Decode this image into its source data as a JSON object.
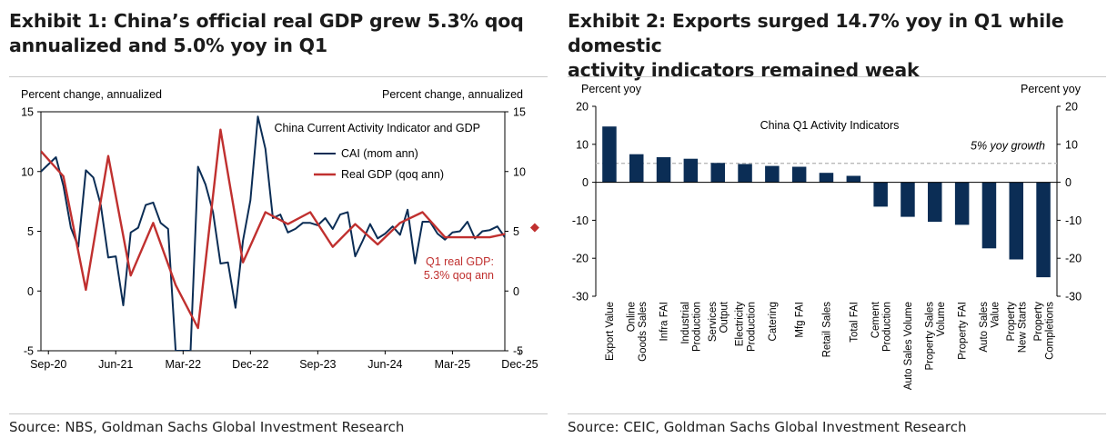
{
  "left": {
    "title_line1": "Exhibit 1: China’s official real GDP grew 5.3% qoq",
    "title_line2": "annualized and 5.0% yoy in Q1",
    "source": "Source: NBS, Goldman Sachs Global Investment Research"
  },
  "right": {
    "title_line1": "Exhibit 2: Exports surged 14.7% yoy in Q1 while domestic",
    "title_line2": "activity indicators remained weak",
    "source": "Source: CEIC, Goldman Sachs Global Investment Research"
  },
  "chart_data": [
    {
      "type": "line",
      "title": "China Current Activity Indicator and GDP",
      "ylabel_left": "Percent change, annualized",
      "ylabel_right": "Percent change, annualized",
      "ylim": [
        -5,
        15
      ],
      "yticks": [
        -5,
        0,
        5,
        10,
        15
      ],
      "x_tick_labels": [
        "Sep-20",
        "Jun-21",
        "Mar-22",
        "Dec-22",
        "Sep-23",
        "Jun-24",
        "Mar-25",
        "Dec-25"
      ],
      "x_start": "Aug-20",
      "x_end": "Mar-26",
      "legend_position": "top-right",
      "annotation": {
        "line1": "Q1 real GDP:",
        "line2": "5.3% qoq ann"
      },
      "series": [
        {
          "name": "CAI (mom ann)",
          "color": "#0b2d55",
          "values": [
            10.0,
            10.6,
            11.2,
            8.8,
            5.3,
            3.7,
            10.1,
            9.5,
            7.2,
            2.8,
            2.9,
            -1.2,
            4.9,
            5.3,
            7.2,
            7.4,
            5.7,
            5.2,
            -5.0,
            -5.0,
            -5.0,
            10.4,
            8.9,
            6.6,
            2.3,
            2.4,
            -1.4,
            4.2,
            7.6,
            14.6,
            11.9,
            6.1,
            6.4,
            4.9,
            5.2,
            5.7,
            5.7,
            5.5,
            6.1,
            5.2,
            6.4,
            6.6,
            2.9,
            4.2,
            5.6,
            4.4,
            4.8,
            5.4,
            4.7,
            6.8,
            2.3,
            5.8,
            5.8,
            4.8,
            4.3,
            4.9,
            5.0,
            5.8,
            4.4,
            5.0,
            5.1,
            5.4,
            4.5
          ]
        },
        {
          "name": "Real GDP (qoq ann)",
          "color": "#c0302f",
          "points": [
            [
              0,
              11.7
            ],
            [
              3,
              9.6
            ],
            [
              6,
              0.1
            ],
            [
              9,
              11.3
            ],
            [
              12,
              1.3
            ],
            [
              15,
              5.7
            ],
            [
              18,
              0.5
            ],
            [
              21,
              -3.1
            ],
            [
              24,
              13.5
            ],
            [
              27,
              2.4
            ],
            [
              30,
              6.6
            ],
            [
              33,
              5.6
            ],
            [
              36,
              6.6
            ],
            [
              39,
              3.7
            ],
            [
              42,
              5.6
            ],
            [
              45,
              3.9
            ],
            [
              48,
              5.7
            ],
            [
              51,
              6.6
            ],
            [
              54,
              4.5
            ],
            [
              57,
              4.5
            ],
            [
              60,
              4.5
            ],
            [
              63,
              4.9
            ],
            [
              66,
              5.3
            ]
          ]
        }
      ]
    },
    {
      "type": "bar",
      "title": "China Q1 Activity Indicators",
      "ylabel_left": "Percent yoy",
      "ylabel_right": "Percent yoy",
      "ylim": [
        -30,
        20
      ],
      "yticks": [
        -30,
        -20,
        -10,
        0,
        10,
        20
      ],
      "reference_line": {
        "value": 5,
        "label": "5% yoy growth"
      },
      "categories": [
        [
          "Export Value"
        ],
        [
          "Online",
          "Goods Sales"
        ],
        [
          "Infra FAI"
        ],
        [
          "Industrial",
          "Production"
        ],
        [
          "Services",
          "Output"
        ],
        [
          "Electricity",
          "Production"
        ],
        [
          "Catering"
        ],
        [
          "Mfg FAI"
        ],
        [
          "Retail Sales"
        ],
        [
          "Total FAI"
        ],
        [
          "Cement",
          "Production"
        ],
        [
          "Auto Sales Volume"
        ],
        [
          "Property Sales",
          "Volume"
        ],
        [
          "Property FAI"
        ],
        [
          "Auto Sales",
          "Value"
        ],
        [
          "Property",
          "New Starts"
        ],
        [
          "Property",
          "Completions"
        ]
      ],
      "values": [
        14.7,
        7.4,
        6.6,
        6.2,
        5.1,
        4.8,
        4.3,
        4.1,
        2.5,
        1.7,
        -6.4,
        -9.1,
        -10.4,
        -11.2,
        -17.4,
        -20.3,
        -25.0
      ],
      "color": "#0b2d55"
    }
  ]
}
